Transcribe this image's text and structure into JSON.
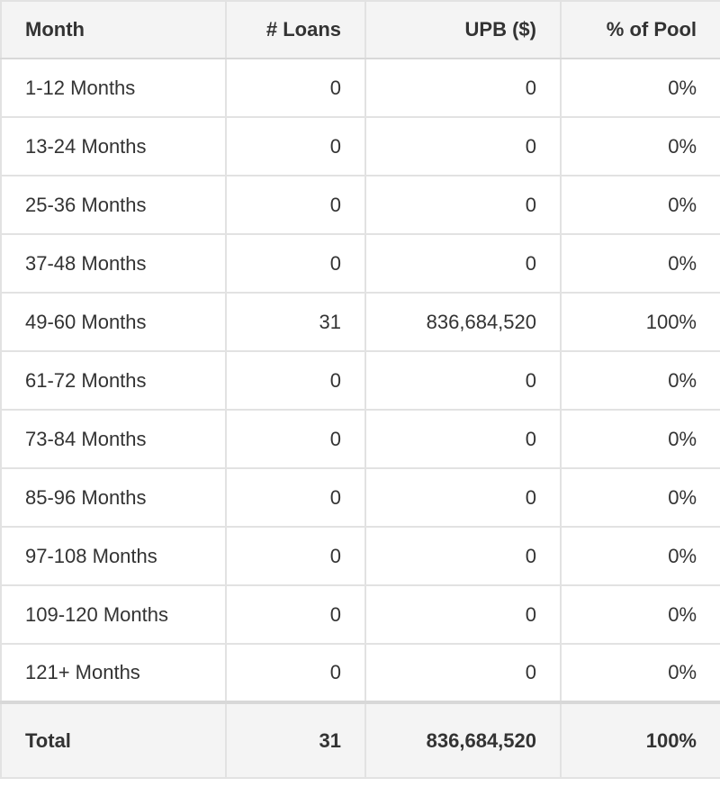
{
  "colors": {
    "header_bg": "#f4f4f4",
    "row_bg": "#ffffff",
    "border_inner": "#e2e2e2",
    "border_outer": "#d4d4d4",
    "text": "#333333"
  },
  "chart_data": {
    "type": "table",
    "title": "",
    "columns": [
      "Month",
      "# Loans",
      "UPB ($)",
      "% of Pool"
    ],
    "column_alignments": [
      "left",
      "right",
      "right",
      "right"
    ],
    "rows": [
      [
        "1-12 Months",
        0,
        0,
        "0%"
      ],
      [
        "13-24 Months",
        0,
        0,
        "0%"
      ],
      [
        "25-36 Months",
        0,
        0,
        "0%"
      ],
      [
        "37-48 Months",
        0,
        0,
        "0%"
      ],
      [
        "49-60 Months",
        31,
        836684520,
        "100%"
      ],
      [
        "61-72 Months",
        0,
        0,
        "0%"
      ],
      [
        "73-84 Months",
        0,
        0,
        "0%"
      ],
      [
        "85-96 Months",
        0,
        0,
        "0%"
      ],
      [
        "97-108 Months",
        0,
        0,
        "0%"
      ],
      [
        "109-120 Months",
        0,
        0,
        "0%"
      ],
      [
        "121+ Months",
        0,
        0,
        "0%"
      ]
    ],
    "total": [
      "Total",
      31,
      836684520,
      "100%"
    ]
  }
}
